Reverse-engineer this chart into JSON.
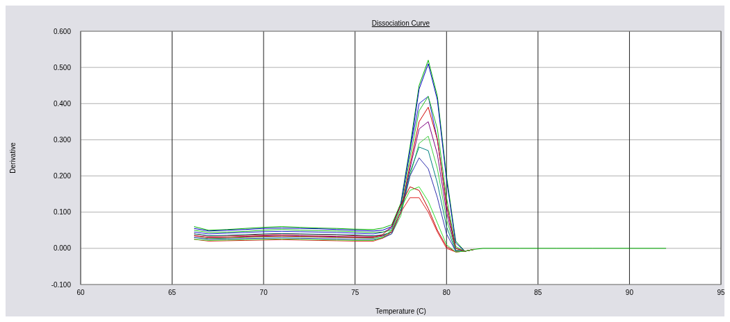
{
  "chart_data": {
    "type": "line",
    "title": "Dissociation Curve",
    "xlabel": "Temperature (C)",
    "ylabel": "Derivative",
    "x": [
      66.2,
      67,
      68,
      69,
      70,
      71,
      72,
      73,
      74,
      75,
      76,
      76.5,
      77,
      77.5,
      78,
      78.5,
      79,
      79.5,
      80,
      80.5,
      81,
      81.5,
      82,
      84,
      86,
      88,
      90,
      92
    ],
    "xlim": [
      60,
      95
    ],
    "xticks": [
      60,
      65,
      70,
      75,
      80,
      85,
      90,
      95
    ],
    "ylim": [
      -0.1,
      0.6
    ],
    "yticks": [
      {
        "value": -0.1,
        "label": "-0.100"
      },
      {
        "value": 0,
        "label": "0.000"
      },
      {
        "value": 0.1,
        "label": "0.100"
      },
      {
        "value": 0.2,
        "label": "0.200"
      },
      {
        "value": 0.3,
        "label": "0.300"
      },
      {
        "value": 0.4,
        "label": "0.400"
      },
      {
        "value": 0.5,
        "label": "0.500"
      },
      {
        "value": 0.6,
        "label": "0.600"
      }
    ],
    "grid": true,
    "marker": "none",
    "line_style": "solid",
    "series": [
      {
        "color": "#00b000",
        "values": [
          0.06,
          0.05,
          0.052,
          0.055,
          0.058,
          0.06,
          0.058,
          0.056,
          0.055,
          0.053,
          0.052,
          0.056,
          0.065,
          0.125,
          0.28,
          0.45,
          0.52,
          0.42,
          0.2,
          0.02,
          -0.008,
          -0.003,
          0,
          0,
          0,
          0,
          0,
          0
        ]
      },
      {
        "color": "#0000c0",
        "values": [
          0.055,
          0.048,
          0.05,
          0.052,
          0.055,
          0.056,
          0.055,
          0.054,
          0.052,
          0.05,
          0.048,
          0.05,
          0.06,
          0.12,
          0.27,
          0.44,
          0.51,
          0.41,
          0.19,
          0.015,
          -0.008,
          -0.003,
          null,
          null,
          null,
          null,
          null,
          null
        ]
      },
      {
        "color": "#2020d0",
        "values": [
          0.045,
          0.04,
          0.042,
          0.044,
          0.046,
          0.047,
          0.046,
          0.045,
          0.044,
          0.042,
          0.04,
          0.044,
          0.055,
          0.12,
          0.27,
          0.4,
          0.42,
          0.3,
          0.12,
          0,
          -0.008,
          -0.003,
          null,
          null,
          null,
          null,
          null,
          null
        ]
      },
      {
        "color": "#20c020",
        "values": [
          0.05,
          0.044,
          0.045,
          0.047,
          0.05,
          0.052,
          0.05,
          0.049,
          0.048,
          0.046,
          0.044,
          0.045,
          0.05,
          0.11,
          0.25,
          0.38,
          0.42,
          0.33,
          0.14,
          0.005,
          -0.008,
          -0.003,
          null,
          null,
          null,
          null,
          null,
          null
        ]
      },
      {
        "color": "#d00000",
        "values": [
          0.04,
          0.034,
          0.035,
          0.036,
          0.038,
          0.04,
          0.039,
          0.038,
          0.037,
          0.035,
          0.034,
          0.036,
          0.045,
          0.1,
          0.23,
          0.35,
          0.39,
          0.3,
          0.12,
          0,
          -0.008,
          -0.003,
          null,
          null,
          null,
          null,
          null,
          null
        ]
      },
      {
        "color": "#800080",
        "values": [
          0.035,
          0.03,
          0.031,
          0.033,
          0.035,
          0.036,
          0.035,
          0.034,
          0.033,
          0.032,
          0.031,
          0.034,
          0.045,
          0.1,
          0.22,
          0.33,
          0.35,
          0.26,
          0.1,
          -0.005,
          -0.008,
          -0.003,
          null,
          null,
          null,
          null,
          null,
          null
        ]
      },
      {
        "color": "#40d040",
        "values": [
          0.03,
          0.027,
          0.028,
          0.03,
          0.032,
          0.033,
          0.032,
          0.031,
          0.03,
          0.029,
          0.028,
          0.031,
          0.04,
          0.09,
          0.2,
          0.29,
          0.31,
          0.22,
          0.08,
          -0.005,
          -0.008,
          -0.003,
          null,
          null,
          null,
          null,
          null,
          null
        ]
      },
      {
        "color": "#008080",
        "values": [
          0.04,
          0.035,
          0.036,
          0.038,
          0.04,
          0.041,
          0.04,
          0.039,
          0.038,
          0.037,
          0.035,
          0.037,
          0.045,
          0.1,
          0.21,
          0.28,
          0.27,
          0.18,
          0.06,
          -0.008,
          -0.008,
          -0.003,
          null,
          null,
          null,
          null,
          null,
          null
        ]
      },
      {
        "color": "#3030b0",
        "values": [
          0.03,
          0.025,
          0.026,
          0.027,
          0.028,
          0.029,
          0.028,
          0.027,
          0.026,
          0.025,
          0.025,
          0.028,
          0.04,
          0.1,
          0.2,
          0.25,
          0.22,
          0.14,
          0.04,
          -0.008,
          -0.008,
          -0.003,
          null,
          null,
          null,
          null,
          null,
          null
        ]
      },
      {
        "color": "#c00000",
        "values": [
          0.035,
          0.03,
          0.031,
          0.032,
          0.033,
          0.034,
          0.033,
          0.032,
          0.031,
          0.03,
          0.03,
          0.038,
          0.06,
          0.12,
          0.17,
          0.16,
          0.11,
          0.05,
          0.005,
          -0.01,
          -0.008,
          -0.003,
          null,
          null,
          null,
          null,
          null,
          null
        ]
      },
      {
        "color": "#e02020",
        "values": [
          0.025,
          0.02,
          0.021,
          0.022,
          0.023,
          0.024,
          0.023,
          0.022,
          0.021,
          0.02,
          0.02,
          0.028,
          0.045,
          0.1,
          0.14,
          0.14,
          0.1,
          0.045,
          0,
          -0.01,
          -0.008,
          -0.003,
          null,
          null,
          null,
          null,
          null,
          null
        ]
      },
      {
        "color": "#30e030",
        "values": [
          0.025,
          0.022,
          0.023,
          0.024,
          0.025,
          0.026,
          0.025,
          0.024,
          0.023,
          0.022,
          0.022,
          0.03,
          0.05,
          0.11,
          0.16,
          0.17,
          0.13,
          0.07,
          0.01,
          -0.01,
          -0.008,
          -0.003,
          null,
          null,
          null,
          null,
          null,
          null
        ]
      }
    ]
  }
}
